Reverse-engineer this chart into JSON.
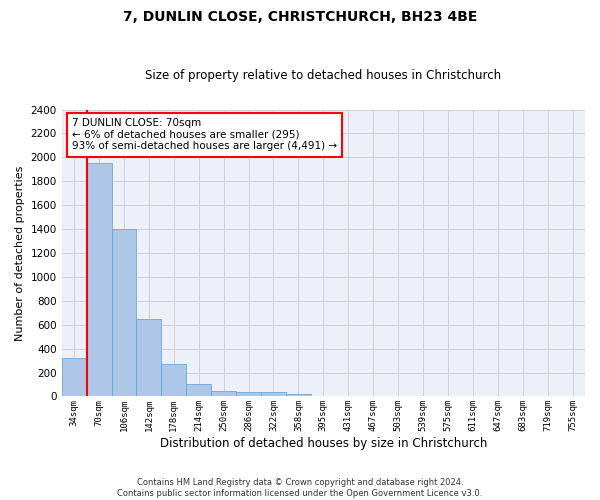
{
  "title": "7, DUNLIN CLOSE, CHRISTCHURCH, BH23 4BE",
  "subtitle": "Size of property relative to detached houses in Christchurch",
  "xlabel": "Distribution of detached houses by size in Christchurch",
  "ylabel": "Number of detached properties",
  "footer_line1": "Contains HM Land Registry data © Crown copyright and database right 2024.",
  "footer_line2": "Contains public sector information licensed under the Open Government Licence v3.0.",
  "bar_labels": [
    "34sqm",
    "70sqm",
    "106sqm",
    "142sqm",
    "178sqm",
    "214sqm",
    "250sqm",
    "286sqm",
    "322sqm",
    "358sqm",
    "395sqm",
    "431sqm",
    "467sqm",
    "503sqm",
    "539sqm",
    "575sqm",
    "611sqm",
    "647sqm",
    "683sqm",
    "719sqm",
    "755sqm"
  ],
  "bar_values": [
    325,
    1950,
    1400,
    650,
    275,
    100,
    48,
    40,
    35,
    22,
    0,
    0,
    0,
    0,
    0,
    0,
    0,
    0,
    0,
    0,
    0
  ],
  "bar_color": "#aec6e8",
  "bar_edge_color": "#5a9fd4",
  "highlight_bar_index": 1,
  "vline_color": "red",
  "ylim": [
    0,
    2400
  ],
  "yticks": [
    0,
    200,
    400,
    600,
    800,
    1000,
    1200,
    1400,
    1600,
    1800,
    2000,
    2200,
    2400
  ],
  "annotation_line1": "7 DUNLIN CLOSE: 70sqm",
  "annotation_line2": "← 6% of detached houses are smaller (295)",
  "annotation_line3": "93% of semi-detached houses are larger (4,491) →",
  "annotation_box_color": "white",
  "annotation_box_edge_color": "red",
  "grid_color": "#c8d0e0",
  "bg_color": "#eef0f8"
}
